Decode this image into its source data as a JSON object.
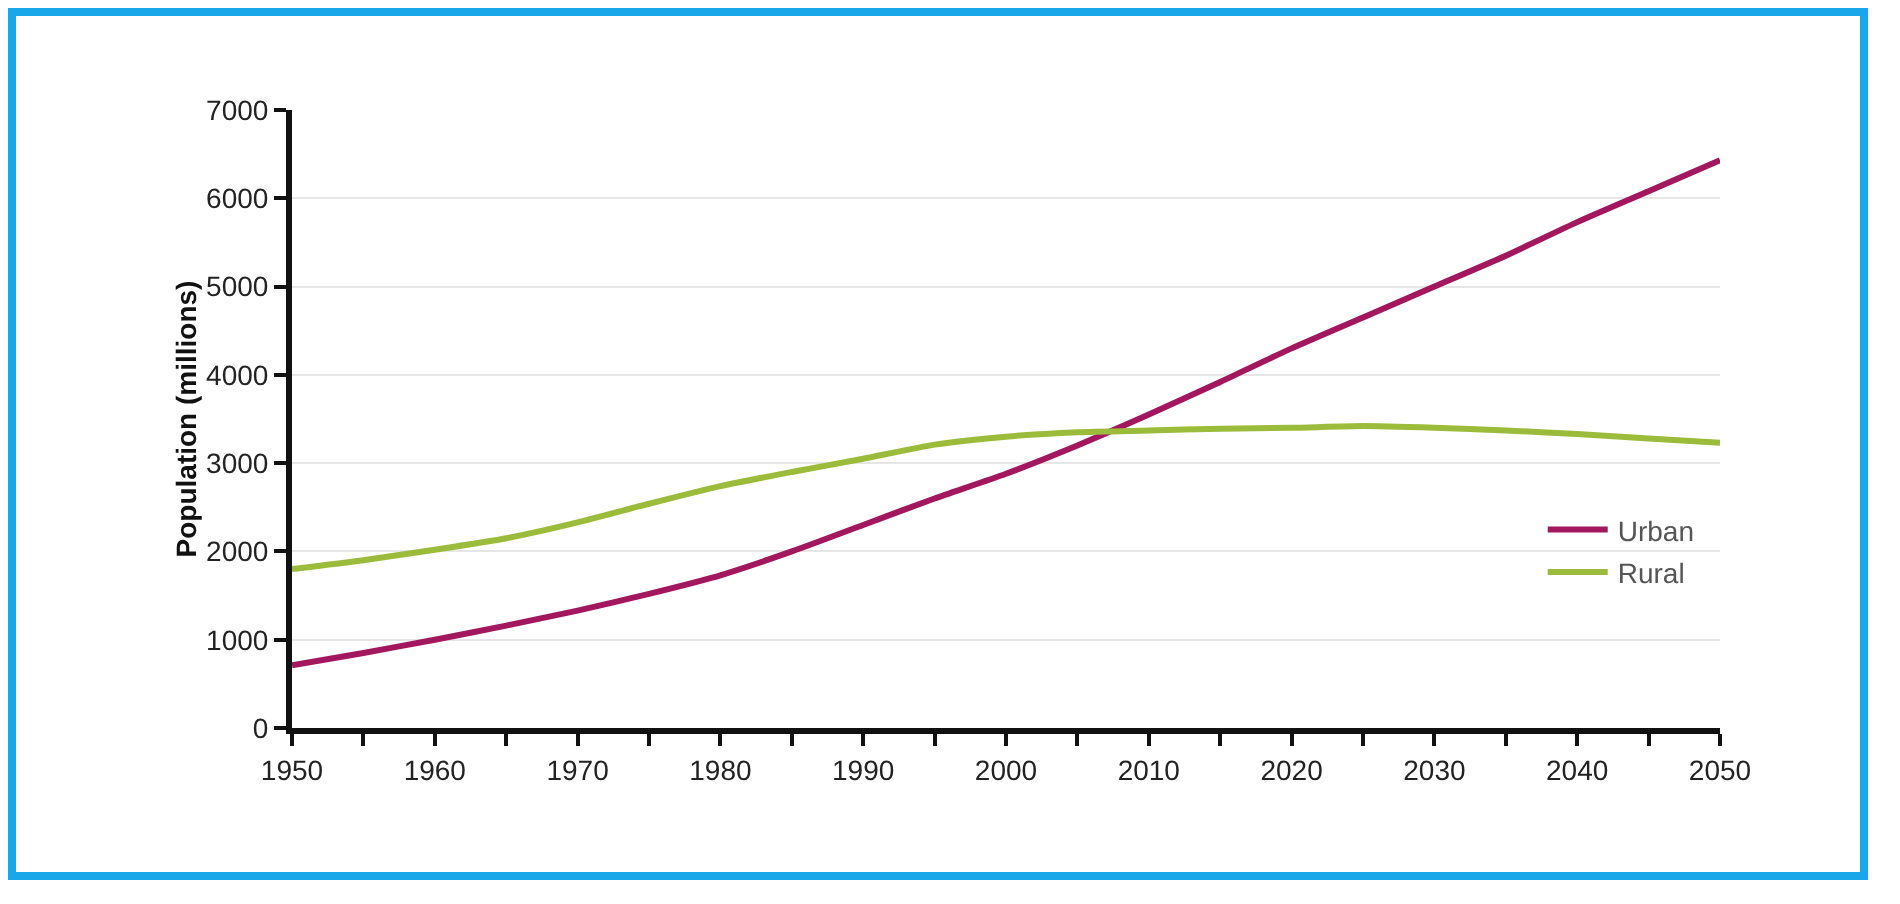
{
  "chart_data": {
    "type": "line",
    "ylabel": "Population (millions)",
    "x": [
      1950,
      1955,
      1960,
      1965,
      1970,
      1975,
      1980,
      1985,
      1990,
      1995,
      2000,
      2005,
      2010,
      2015,
      2020,
      2025,
      2030,
      2035,
      2040,
      2045,
      2050
    ],
    "series": [
      {
        "name": "Urban",
        "color": "#a3175f",
        "values": [
          710,
          850,
          1000,
          1160,
          1330,
          1520,
          1730,
          2000,
          2300,
          2600,
          2880,
          3200,
          3550,
          3920,
          4300,
          4650,
          5000,
          5350,
          5730,
          6080,
          6430
        ]
      },
      {
        "name": "Rural",
        "color": "#9bbb3b",
        "values": [
          1800,
          1900,
          2020,
          2150,
          2330,
          2540,
          2740,
          2900,
          3050,
          3210,
          3300,
          3350,
          3370,
          3390,
          3400,
          3420,
          3400,
          3370,
          3330,
          3280,
          3230
        ]
      }
    ],
    "xlim": [
      1950,
      2050
    ],
    "xticks": [
      1950,
      {
        "value": 1955,
        "label": null
      },
      1960,
      {
        "value": 1965,
        "label": null
      },
      1970,
      {
        "value": 1975,
        "label": null
      },
      1980,
      {
        "value": 1985,
        "label": null
      },
      1990,
      {
        "value": 1995,
        "label": null
      },
      2000,
      {
        "value": 2005,
        "label": null
      },
      2010,
      {
        "value": 2015,
        "label": null
      },
      2020,
      {
        "value": 2025,
        "label": null
      },
      2030,
      {
        "value": 2035,
        "label": null
      },
      2040,
      {
        "value": 2045,
        "label": null
      },
      2050
    ],
    "ylim": [
      0,
      7000
    ],
    "yticks": [
      0,
      1000,
      2000,
      3000,
      4000,
      5000,
      6000,
      7000
    ],
    "grid": "y",
    "legend": "bottom right",
    "line_style": "solid",
    "marker": "none"
  }
}
